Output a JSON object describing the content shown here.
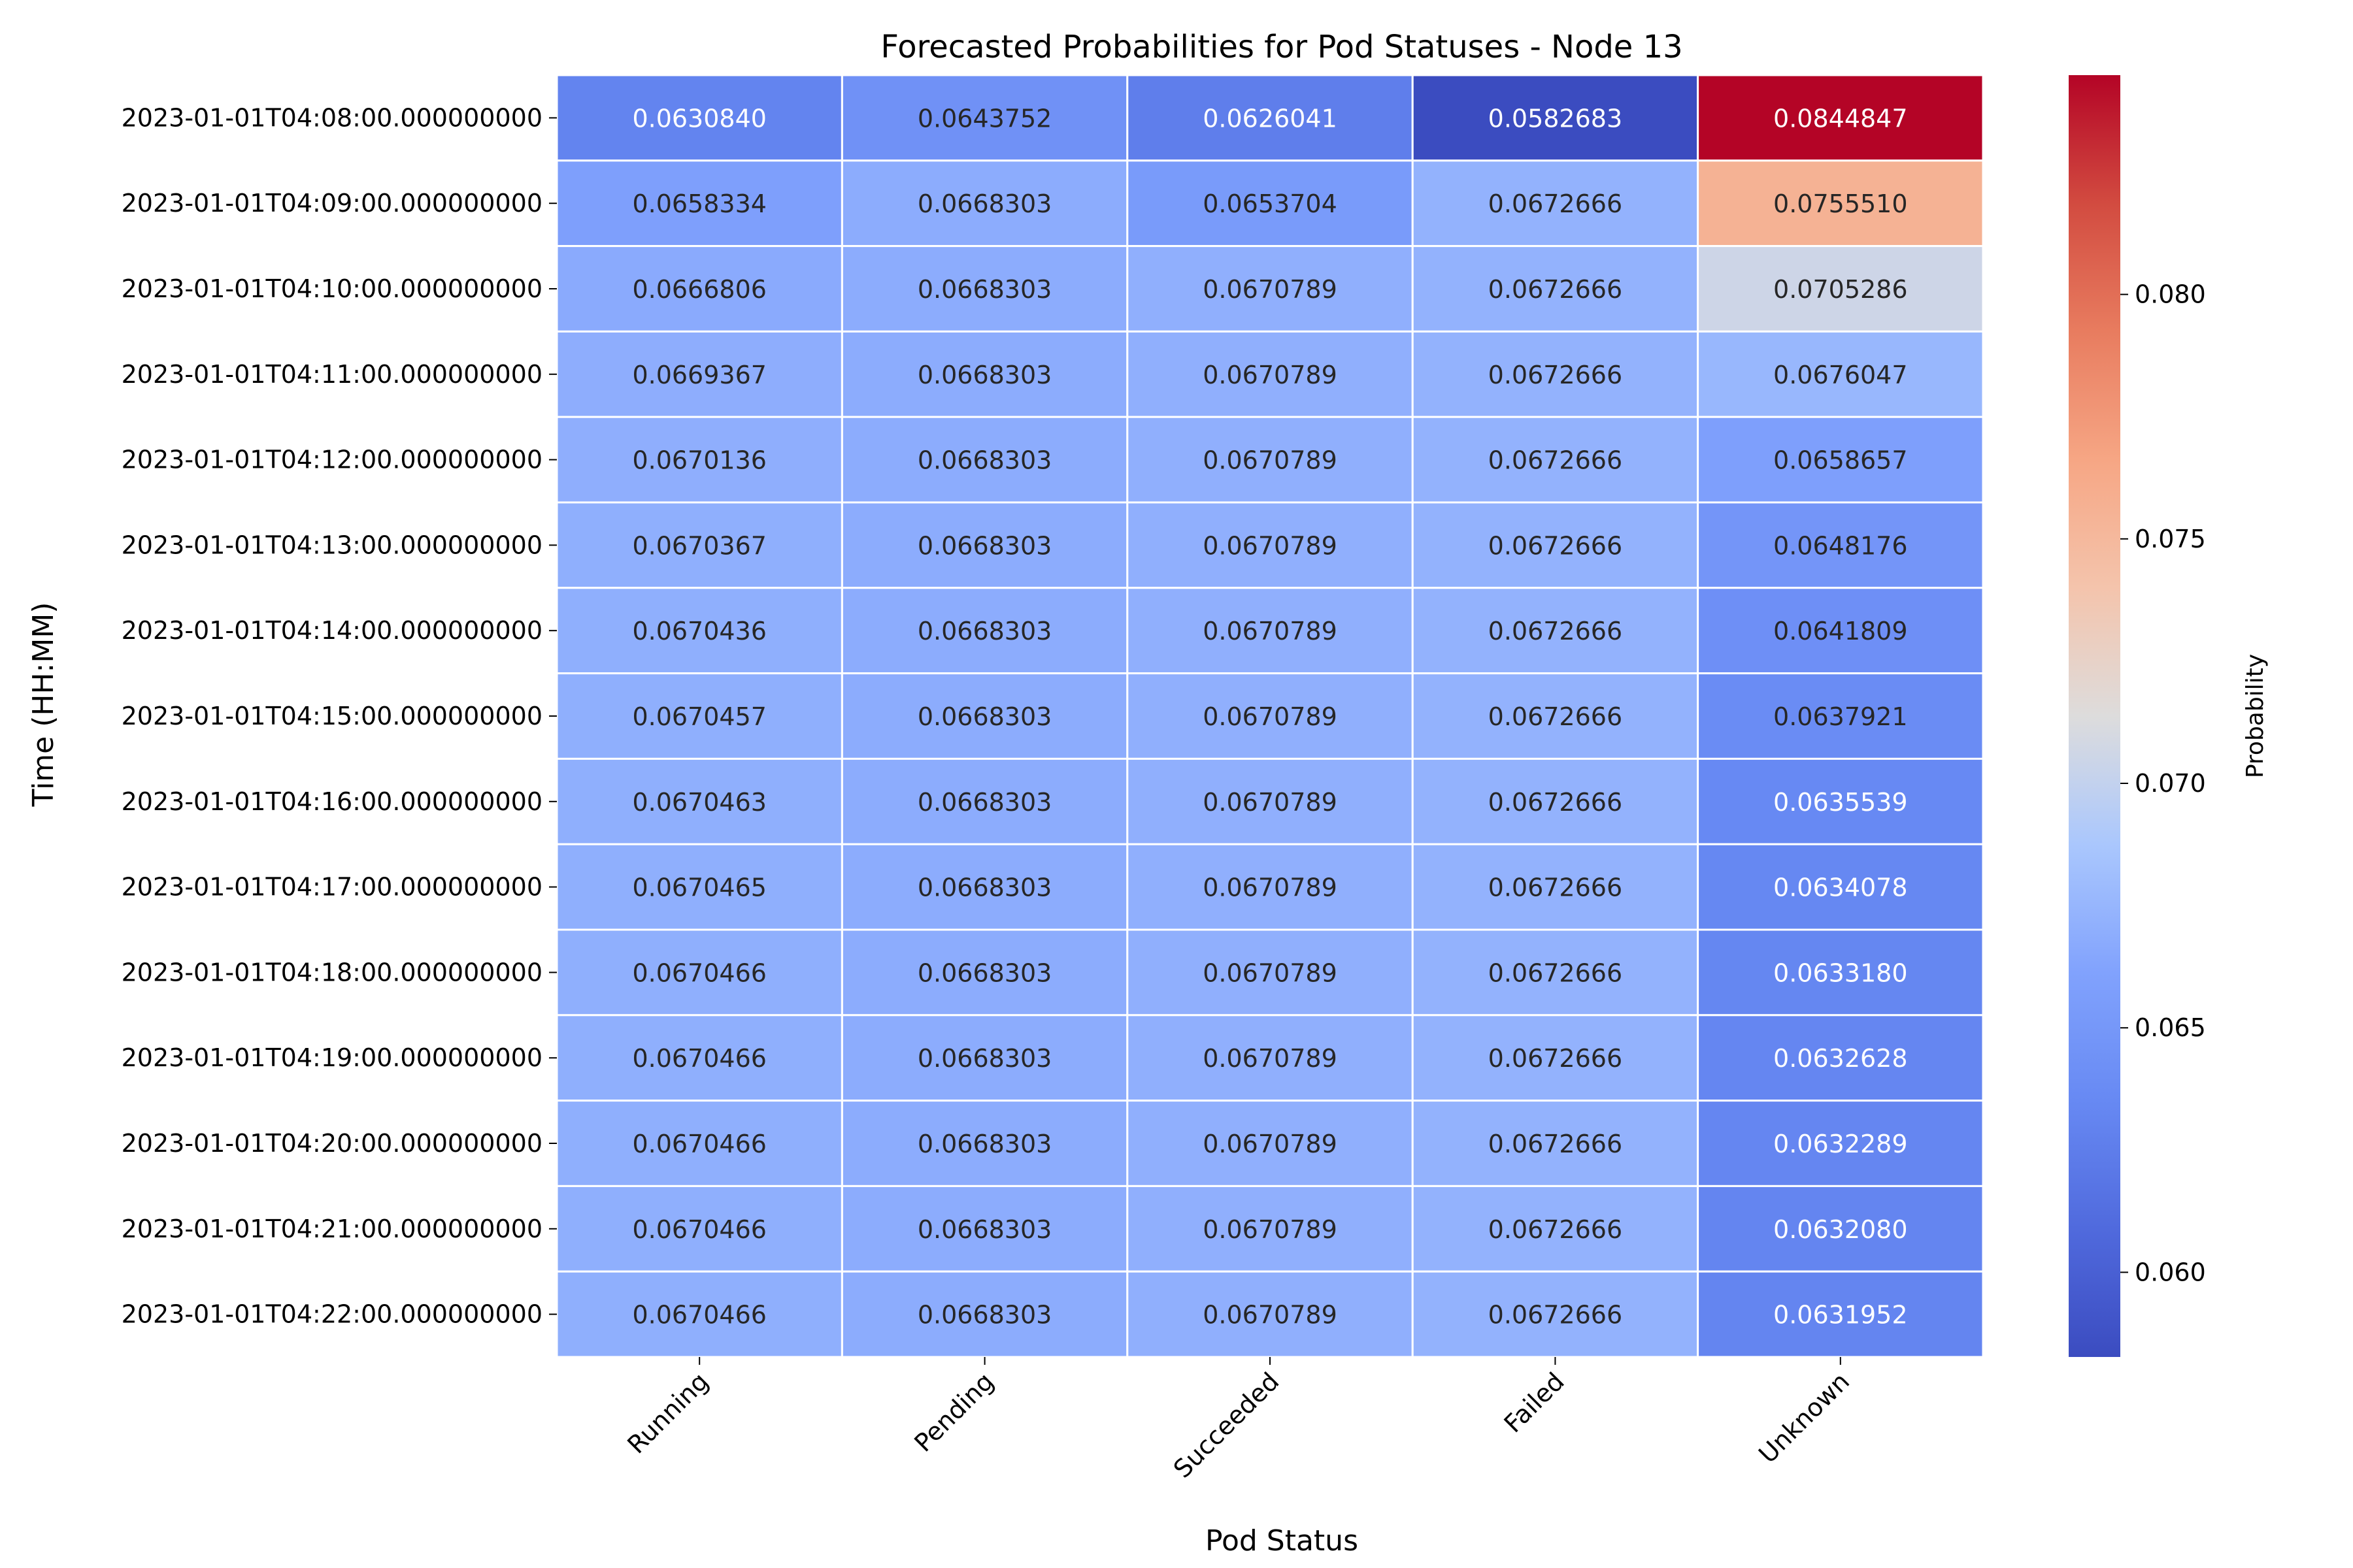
{
  "chart_data": {
    "type": "heatmap",
    "title": "Forecasted Probabilities for Pod Statuses - Node 13",
    "xlabel": "Pod Status",
    "ylabel": "Time (HH:MM)",
    "colorbar_label": "Probability",
    "colormap": "coolwarm",
    "vmin": 0.0582683,
    "vmax": 0.0844847,
    "colorbar_ticks": [
      "0.060",
      "0.065",
      "0.070",
      "0.075",
      "0.080"
    ],
    "colorbar_tick_values": [
      0.06,
      0.065,
      0.07,
      0.075,
      0.08
    ],
    "columns": [
      "Running",
      "Pending",
      "Succeeded",
      "Failed",
      "Unknown"
    ],
    "rows": [
      "2023-01-01T04:08:00.000000000",
      "2023-01-01T04:09:00.000000000",
      "2023-01-01T04:10:00.000000000",
      "2023-01-01T04:11:00.000000000",
      "2023-01-01T04:12:00.000000000",
      "2023-01-01T04:13:00.000000000",
      "2023-01-01T04:14:00.000000000",
      "2023-01-01T04:15:00.000000000",
      "2023-01-01T04:16:00.000000000",
      "2023-01-01T04:17:00.000000000",
      "2023-01-01T04:18:00.000000000",
      "2023-01-01T04:19:00.000000000",
      "2023-01-01T04:20:00.000000000",
      "2023-01-01T04:21:00.000000000",
      "2023-01-01T04:22:00.000000000"
    ],
    "values": [
      [
        "0.0630840",
        "0.0643752",
        "0.0626041",
        "0.0582683",
        "0.0844847"
      ],
      [
        "0.0658334",
        "0.0668303",
        "0.0653704",
        "0.0672666",
        "0.0755510"
      ],
      [
        "0.0666806",
        "0.0668303",
        "0.0670789",
        "0.0672666",
        "0.0705286"
      ],
      [
        "0.0669367",
        "0.0668303",
        "0.0670789",
        "0.0672666",
        "0.0676047"
      ],
      [
        "0.0670136",
        "0.0668303",
        "0.0670789",
        "0.0672666",
        "0.0658657"
      ],
      [
        "0.0670367",
        "0.0668303",
        "0.0670789",
        "0.0672666",
        "0.0648176"
      ],
      [
        "0.0670436",
        "0.0668303",
        "0.0670789",
        "0.0672666",
        "0.0641809"
      ],
      [
        "0.0670457",
        "0.0668303",
        "0.0670789",
        "0.0672666",
        "0.0637921"
      ],
      [
        "0.0670463",
        "0.0668303",
        "0.0670789",
        "0.0672666",
        "0.0635539"
      ],
      [
        "0.0670465",
        "0.0668303",
        "0.0670789",
        "0.0672666",
        "0.0634078"
      ],
      [
        "0.0670466",
        "0.0668303",
        "0.0670789",
        "0.0672666",
        "0.0633180"
      ],
      [
        "0.0670466",
        "0.0668303",
        "0.0670789",
        "0.0672666",
        "0.0632628"
      ],
      [
        "0.0670466",
        "0.0668303",
        "0.0670789",
        "0.0672666",
        "0.0632289"
      ],
      [
        "0.0670466",
        "0.0668303",
        "0.0670789",
        "0.0672666",
        "0.0632080"
      ],
      [
        "0.0670466",
        "0.0668303",
        "0.0670789",
        "0.0672666",
        "0.0631952"
      ]
    ]
  }
}
